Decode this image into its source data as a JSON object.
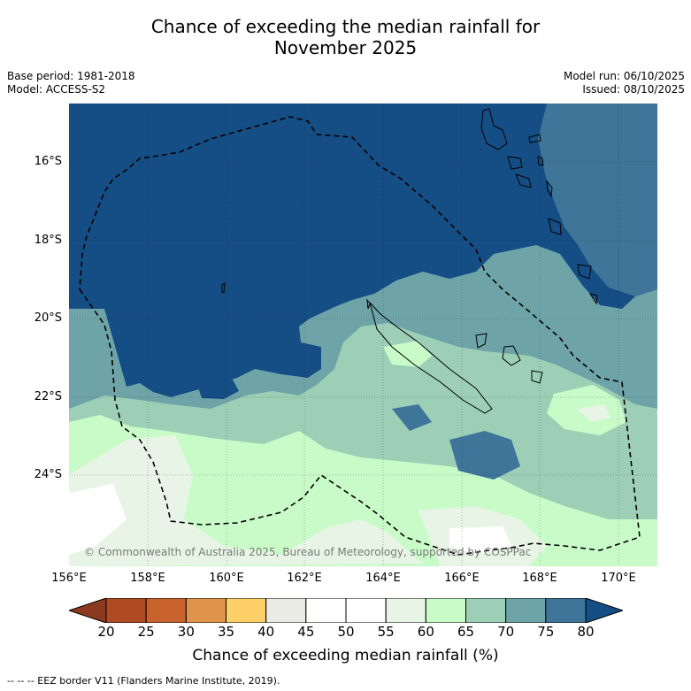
{
  "title_line1": "Chance of exceeding the median rainfall for",
  "title_line2": "November 2025",
  "base_period": "Base period: 1981-2018",
  "model": "Model: ACCESS-S2",
  "model_run": "Model run: 06/10/2025",
  "issued": "Issued: 08/10/2025",
  "copyright": "© Commonwealth of Australia 2025, Bureau of Meteorology, supported by COSPPac",
  "y_ticks": [
    "16°S",
    "18°S",
    "20°S",
    "22°S",
    "24°S"
  ],
  "x_ticks": [
    "156°E",
    "158°E",
    "160°E",
    "162°E",
    "164°E",
    "166°E",
    "168°E",
    "170°E"
  ],
  "colorbar": {
    "labels": [
      "20",
      "25",
      "30",
      "35",
      "40",
      "45",
      "50",
      "55",
      "60",
      "65",
      "70",
      "75",
      "80"
    ],
    "colors": [
      "#8b3a1f",
      "#b04a22",
      "#c9632e",
      "#e0934a",
      "#fdd06a",
      "#ebebe6",
      "#ffffff",
      "#ffffff",
      "#e8f5e6",
      "#c9fbc9",
      "#9dcfb6",
      "#6ea4a8",
      "#3f7599",
      "#154e85"
    ],
    "title": "Chance of exceeding median rainfall (%)"
  },
  "legend_footer": "-- -- -- EEZ border V11 (Flanders Marine Institute, 2019)."
}
